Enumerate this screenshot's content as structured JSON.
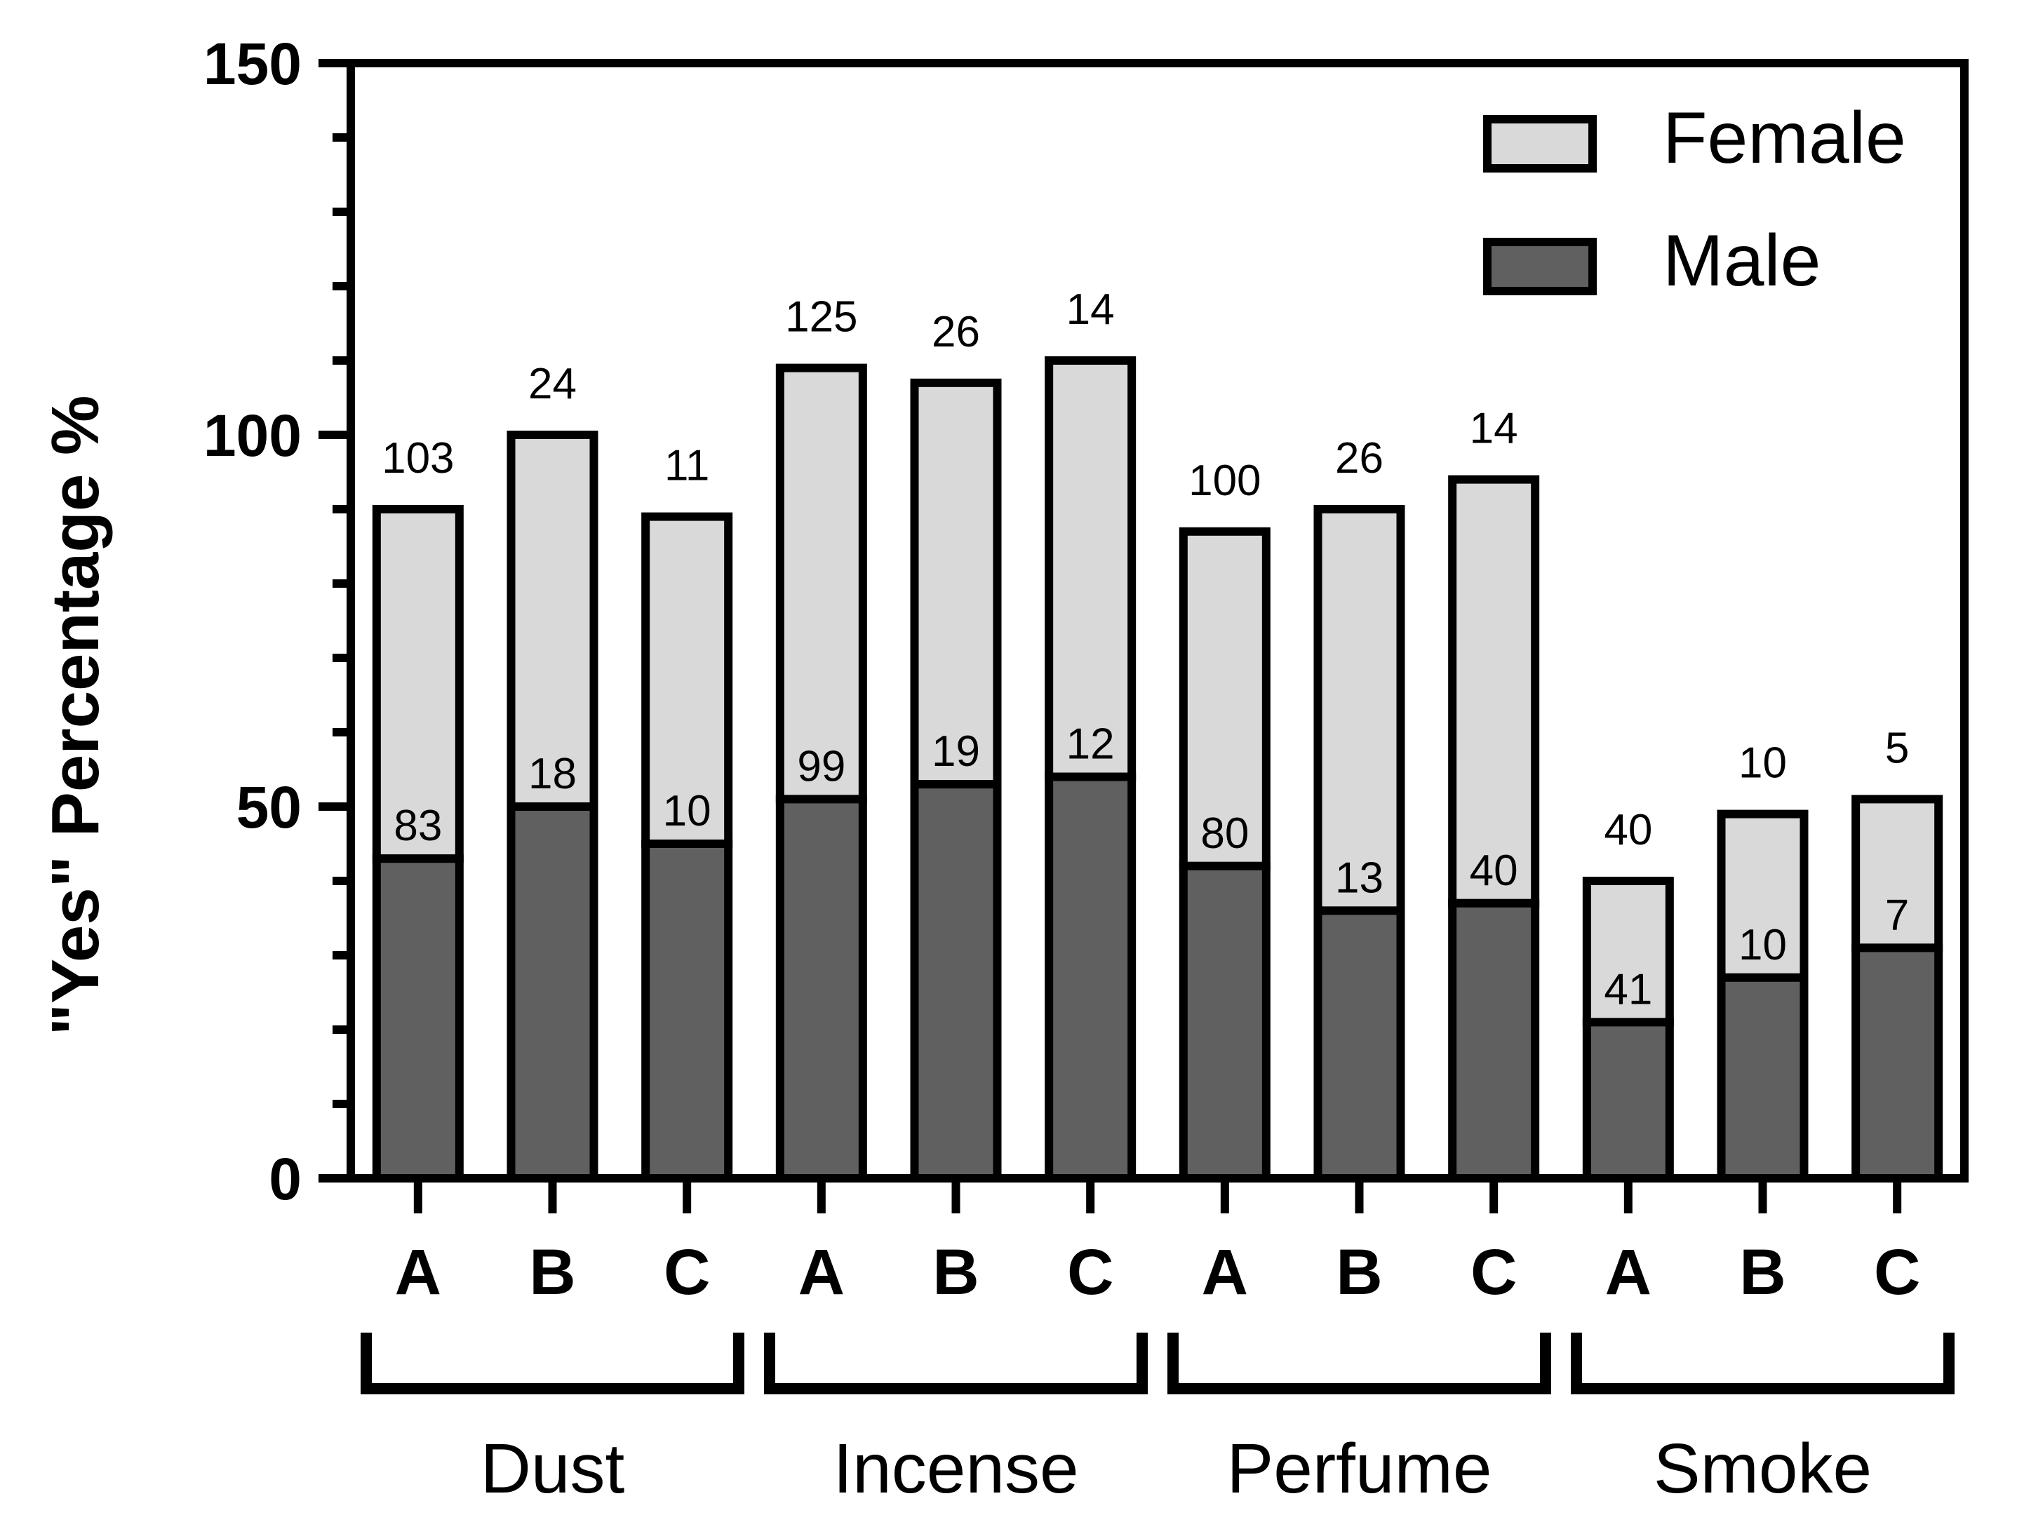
{
  "chart_data": {
    "type": "bar",
    "stacked": true,
    "ylabel": "\"Yes\" Percentage %",
    "xlabel": "",
    "ylim": [
      0,
      150
    ],
    "y_ticks": [
      "0",
      "50",
      "100",
      "150"
    ],
    "y_tick_values": [
      0,
      50,
      100,
      150
    ],
    "y_minor_step": 10,
    "grid": false,
    "legend_position": "top-right",
    "categories": [
      "A",
      "B",
      "C",
      "A",
      "B",
      "C",
      "A",
      "B",
      "C",
      "A",
      "B",
      "C"
    ],
    "groups": [
      {
        "label": "Dust",
        "categories": [
          "A",
          "B",
          "C"
        ]
      },
      {
        "label": "Incense",
        "categories": [
          "A",
          "B",
          "C"
        ]
      },
      {
        "label": "Perfume",
        "categories": [
          "A",
          "B",
          "C"
        ]
      },
      {
        "label": "Smoke",
        "categories": [
          "A",
          "B",
          "C"
        ]
      }
    ],
    "series": [
      {
        "name": "Male",
        "color": "#606060",
        "values": [
          43,
          50,
          45,
          51,
          53,
          54,
          42,
          36,
          37,
          21,
          27,
          31
        ],
        "labels": [
          "83",
          "18",
          "10",
          "99",
          "19",
          "12",
          "80",
          "13",
          "40",
          "41",
          "10",
          "7"
        ]
      },
      {
        "name": "Female",
        "color": "#d9d9d9",
        "values": [
          47,
          50,
          44,
          58,
          54,
          56,
          45,
          54,
          57,
          19,
          22,
          20
        ],
        "labels": [
          "103",
          "24",
          "11",
          "125",
          "26",
          "14",
          "100",
          "26",
          "14",
          "40",
          "10",
          "5"
        ]
      }
    ],
    "legend": [
      {
        "name": "Female",
        "color": "#d9d9d9"
      },
      {
        "name": "Male",
        "color": "#606060"
      }
    ]
  }
}
